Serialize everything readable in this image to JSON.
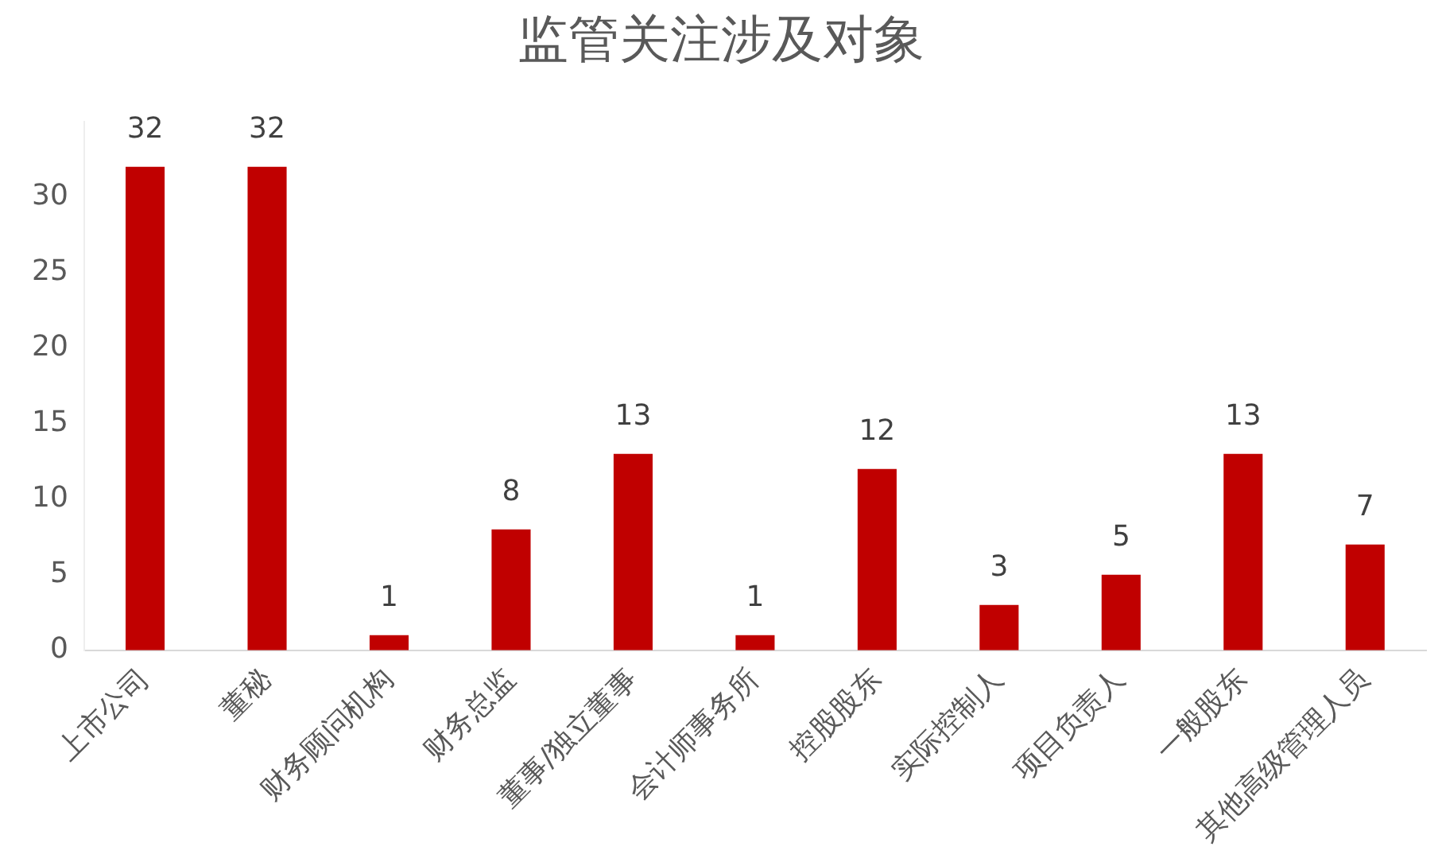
{
  "chart_data": {
    "type": "bar",
    "title": "监管关注涉及对象",
    "categories": [
      "上市公司",
      "董秘",
      "财务顾问机构",
      "财务总监",
      "董事/独立董事",
      "会计师事务所",
      "控股股东",
      "实际控制人",
      "项目负责人",
      "一般股东",
      "其他高级管理人员"
    ],
    "values": [
      32,
      32,
      1,
      8,
      13,
      1,
      12,
      3,
      5,
      13,
      7
    ],
    "color": "#c00000",
    "ylim": [
      0,
      35
    ],
    "yticks": [
      0,
      5,
      10,
      15,
      20,
      25,
      30
    ],
    "data_labels": true
  }
}
